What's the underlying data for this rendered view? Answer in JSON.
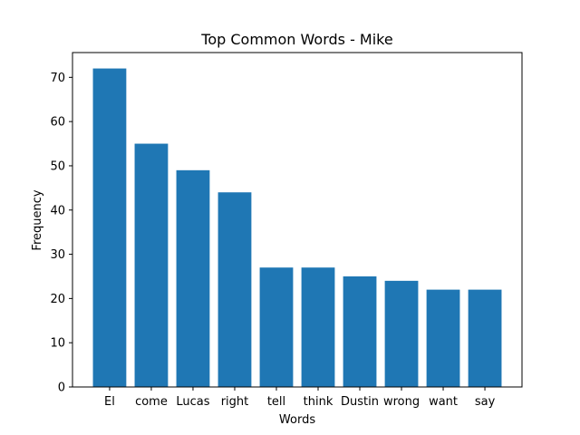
{
  "chart_data": {
    "type": "bar",
    "title": "Top Common Words - Mike",
    "xlabel": "Words",
    "ylabel": "Frequency",
    "categories": [
      "El",
      "come",
      "Lucas",
      "right",
      "tell",
      "think",
      "Dustin",
      "wrong",
      "want",
      "say"
    ],
    "values": [
      72,
      55,
      49,
      44,
      27,
      27,
      25,
      24,
      22,
      22
    ],
    "ylim": [
      0,
      75.6
    ],
    "yticks": [
      0,
      10,
      20,
      30,
      40,
      50,
      60,
      70
    ],
    "bar_color": "#1f77b4",
    "grid": false
  }
}
